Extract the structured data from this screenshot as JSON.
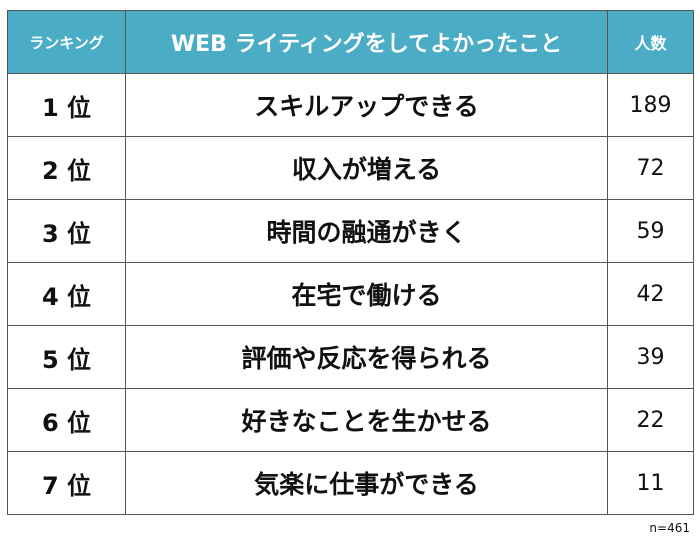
{
  "header": {
    "rank": "ランキング",
    "title": "WEB ライティングをしてよかったこと",
    "count": "人数"
  },
  "rows": [
    {
      "rank": "1 位",
      "item": "スキルアップできる",
      "count": "189"
    },
    {
      "rank": "2 位",
      "item": "収入が増える",
      "count": "72"
    },
    {
      "rank": "3 位",
      "item": "時間の融通がきく",
      "count": "59"
    },
    {
      "rank": "4 位",
      "item": "在宅で働ける",
      "count": "42"
    },
    {
      "rank": "5 位",
      "item": "評価や反応を得られる",
      "count": "39"
    },
    {
      "rank": "6 位",
      "item": "好きなことを生かせる",
      "count": "22"
    },
    {
      "rank": "7 位",
      "item": "気楽に仕事ができる",
      "count": "11"
    }
  ],
  "note": "n=461",
  "colors": {
    "header": "#4bacc6"
  }
}
